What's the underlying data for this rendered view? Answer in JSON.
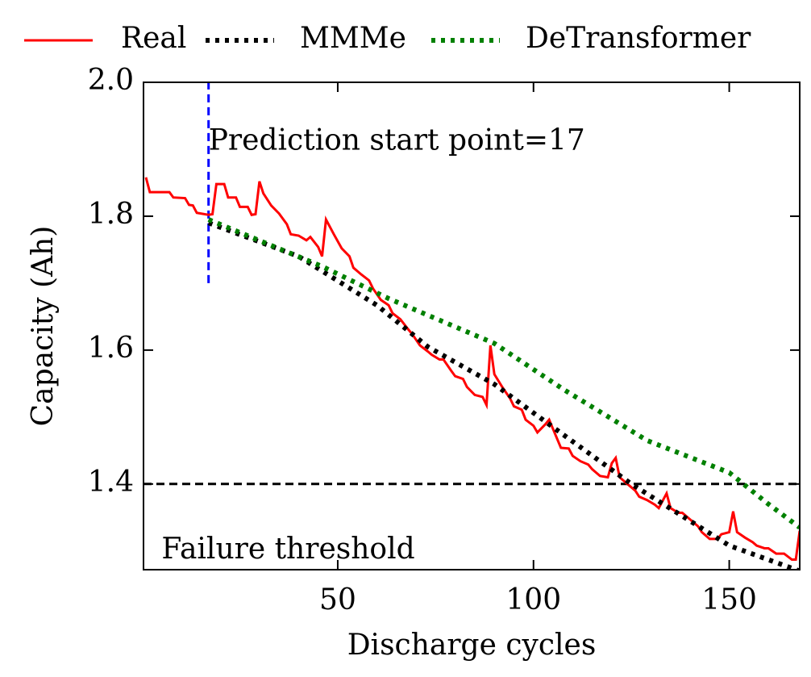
{
  "chart_data": {
    "type": "line",
    "xlabel": "Discharge cycles",
    "ylabel": "Capacity (Ah)",
    "xlim": [
      1,
      168
    ],
    "ylim": [
      1.272,
      2.0
    ],
    "xticks": [
      50,
      100,
      150
    ],
    "yticks": [
      1.4,
      1.6,
      1.8,
      {
        "value": 2.0,
        "label": "2.0"
      }
    ],
    "series": [
      {
        "name": "Real",
        "color": "#ff0000",
        "dash": "solid",
        "x": [
          1,
          2,
          5,
          7,
          8,
          11,
          12,
          13,
          14,
          17,
          18,
          19,
          21,
          22,
          24,
          25,
          27,
          28,
          29,
          30,
          31,
          33,
          35,
          37,
          38,
          40,
          42,
          43,
          45,
          46,
          47,
          49,
          51,
          53,
          54,
          56,
          58,
          59,
          61,
          63,
          64,
          66,
          68,
          69,
          71,
          73,
          74,
          76,
          77,
          79,
          80,
          82,
          83,
          85,
          87,
          88,
          89,
          90,
          92,
          94,
          95,
          97,
          98,
          100,
          101,
          103,
          104,
          105,
          107,
          109,
          110,
          112,
          114,
          115,
          117,
          119,
          120,
          121,
          122,
          124,
          126,
          127,
          129,
          131,
          132,
          134,
          135,
          137,
          138,
          140,
          142,
          143,
          145,
          147,
          148,
          150,
          151,
          152,
          154,
          156,
          157,
          159,
          160,
          162,
          164,
          166,
          167,
          168
        ],
        "values": [
          1.858,
          1.836,
          1.836,
          1.836,
          1.828,
          1.827,
          1.817,
          1.816,
          1.805,
          1.802,
          1.803,
          1.848,
          1.848,
          1.828,
          1.828,
          1.814,
          1.814,
          1.802,
          1.803,
          1.852,
          1.834,
          1.816,
          1.804,
          1.788,
          1.773,
          1.771,
          1.764,
          1.769,
          1.754,
          1.74,
          1.795,
          1.773,
          1.752,
          1.74,
          1.723,
          1.713,
          1.704,
          1.692,
          1.675,
          1.667,
          1.655,
          1.646,
          1.631,
          1.624,
          1.607,
          1.598,
          1.593,
          1.586,
          1.586,
          1.569,
          1.561,
          1.557,
          1.545,
          1.533,
          1.53,
          1.518,
          1.607,
          1.564,
          1.545,
          1.528,
          1.516,
          1.511,
          1.496,
          1.487,
          1.477,
          1.489,
          1.496,
          1.482,
          1.454,
          1.453,
          1.442,
          1.434,
          1.429,
          1.422,
          1.412,
          1.41,
          1.431,
          1.439,
          1.41,
          1.4,
          1.39,
          1.381,
          1.376,
          1.369,
          1.364,
          1.386,
          1.364,
          1.357,
          1.357,
          1.347,
          1.337,
          1.328,
          1.318,
          1.318,
          1.325,
          1.328,
          1.359,
          1.328,
          1.32,
          1.313,
          1.308,
          1.304,
          1.304,
          1.296,
          1.296,
          1.287,
          1.287,
          1.33
        ]
      },
      {
        "name": "MMMe",
        "color": "#000000",
        "dash": "dotted",
        "x": [
          17,
          40,
          60,
          73,
          90,
          108,
          125,
          150,
          168
        ],
        "values": [
          1.79,
          1.74,
          1.667,
          1.605,
          1.549,
          1.472,
          1.4,
          1.308,
          1.27
        ]
      },
      {
        "name": "DeTransformer",
        "color": "#008000",
        "dash": "dotted",
        "x": [
          17,
          46,
          63,
          90,
          108,
          129,
          150,
          160,
          168
        ],
        "values": [
          1.795,
          1.725,
          1.677,
          1.61,
          1.54,
          1.465,
          1.417,
          1.37,
          1.335
        ]
      }
    ],
    "vline": {
      "x": 17,
      "y": [
        1.7,
        2.0
      ],
      "color": "#0000ff"
    },
    "hline": {
      "y": 1.4,
      "color": "#000000"
    },
    "annotations": [
      {
        "text": "Prediction start point=17",
        "x": 17,
        "y": 1.91
      },
      {
        "text": "Failure threshold",
        "x": 5,
        "y": 1.3
      }
    ]
  }
}
